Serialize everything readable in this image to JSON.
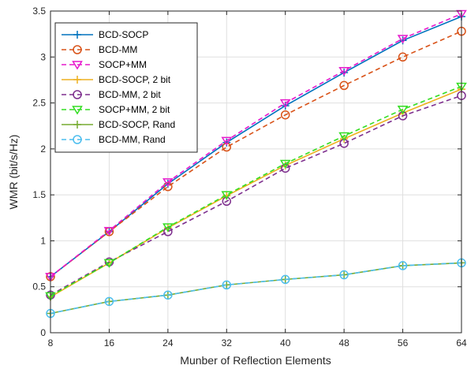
{
  "chart_data": {
    "type": "line",
    "title": "",
    "xlabel": "Munber of Reflection Elements",
    "ylabel": "WMR (bit/s/Hz)",
    "x": [
      8,
      16,
      24,
      32,
      40,
      48,
      56,
      64
    ],
    "xticks": [
      "8",
      "16",
      "24",
      "32",
      "40",
      "48",
      "56",
      "64"
    ],
    "yticks": [
      "0",
      "0.5",
      "1",
      "1.5",
      "2",
      "2.5",
      "3",
      "3.5"
    ],
    "xlim": [
      8,
      64
    ],
    "ylim": [
      0,
      3.5
    ],
    "grid": true,
    "legend_position": "top-left",
    "series": [
      {
        "name": "BCD-SOCP",
        "color": "#0072BD",
        "dash": "solid",
        "marker": "plus",
        "values": [
          0.61,
          1.1,
          1.62,
          2.07,
          2.47,
          2.83,
          3.18,
          3.44
        ]
      },
      {
        "name": "BCD-MM",
        "color": "#D95319",
        "dash": "dashed",
        "marker": "circle",
        "values": [
          0.61,
          1.1,
          1.59,
          2.02,
          2.37,
          2.69,
          3.0,
          3.28
        ]
      },
      {
        "name": "SOCP+MM",
        "color": "#E619CC",
        "dash": "dashed",
        "marker": "triangle-down",
        "values": [
          0.61,
          1.11,
          1.64,
          2.09,
          2.5,
          2.85,
          3.2,
          3.47
        ]
      },
      {
        "name": "BCD-SOCP, 2 bit",
        "color": "#EDB120",
        "dash": "solid",
        "marker": "plus",
        "values": [
          0.39,
          0.76,
          1.14,
          1.49,
          1.82,
          2.11,
          2.39,
          2.65
        ]
      },
      {
        "name": "BCD-MM, 2 bit",
        "color": "#7E2F8E",
        "dash": "dashed",
        "marker": "circle",
        "values": [
          0.41,
          0.77,
          1.1,
          1.43,
          1.79,
          2.06,
          2.36,
          2.58
        ]
      },
      {
        "name": "SOCP+MM, 2 bit",
        "color": "#33DD22",
        "dash": "dashed",
        "marker": "triangle-down",
        "values": [
          0.4,
          0.76,
          1.15,
          1.5,
          1.84,
          2.14,
          2.43,
          2.68
        ]
      },
      {
        "name": "BCD-SOCP, Rand",
        "color": "#77AC30",
        "dash": "solid",
        "marker": "plus",
        "values": [
          0.21,
          0.34,
          0.41,
          0.52,
          0.58,
          0.63,
          0.73,
          0.76
        ]
      },
      {
        "name": "BCD-MM, Rand",
        "color": "#4DBEEE",
        "dash": "dashed",
        "marker": "circle",
        "values": [
          0.21,
          0.34,
          0.41,
          0.52,
          0.58,
          0.63,
          0.73,
          0.76
        ]
      }
    ]
  }
}
